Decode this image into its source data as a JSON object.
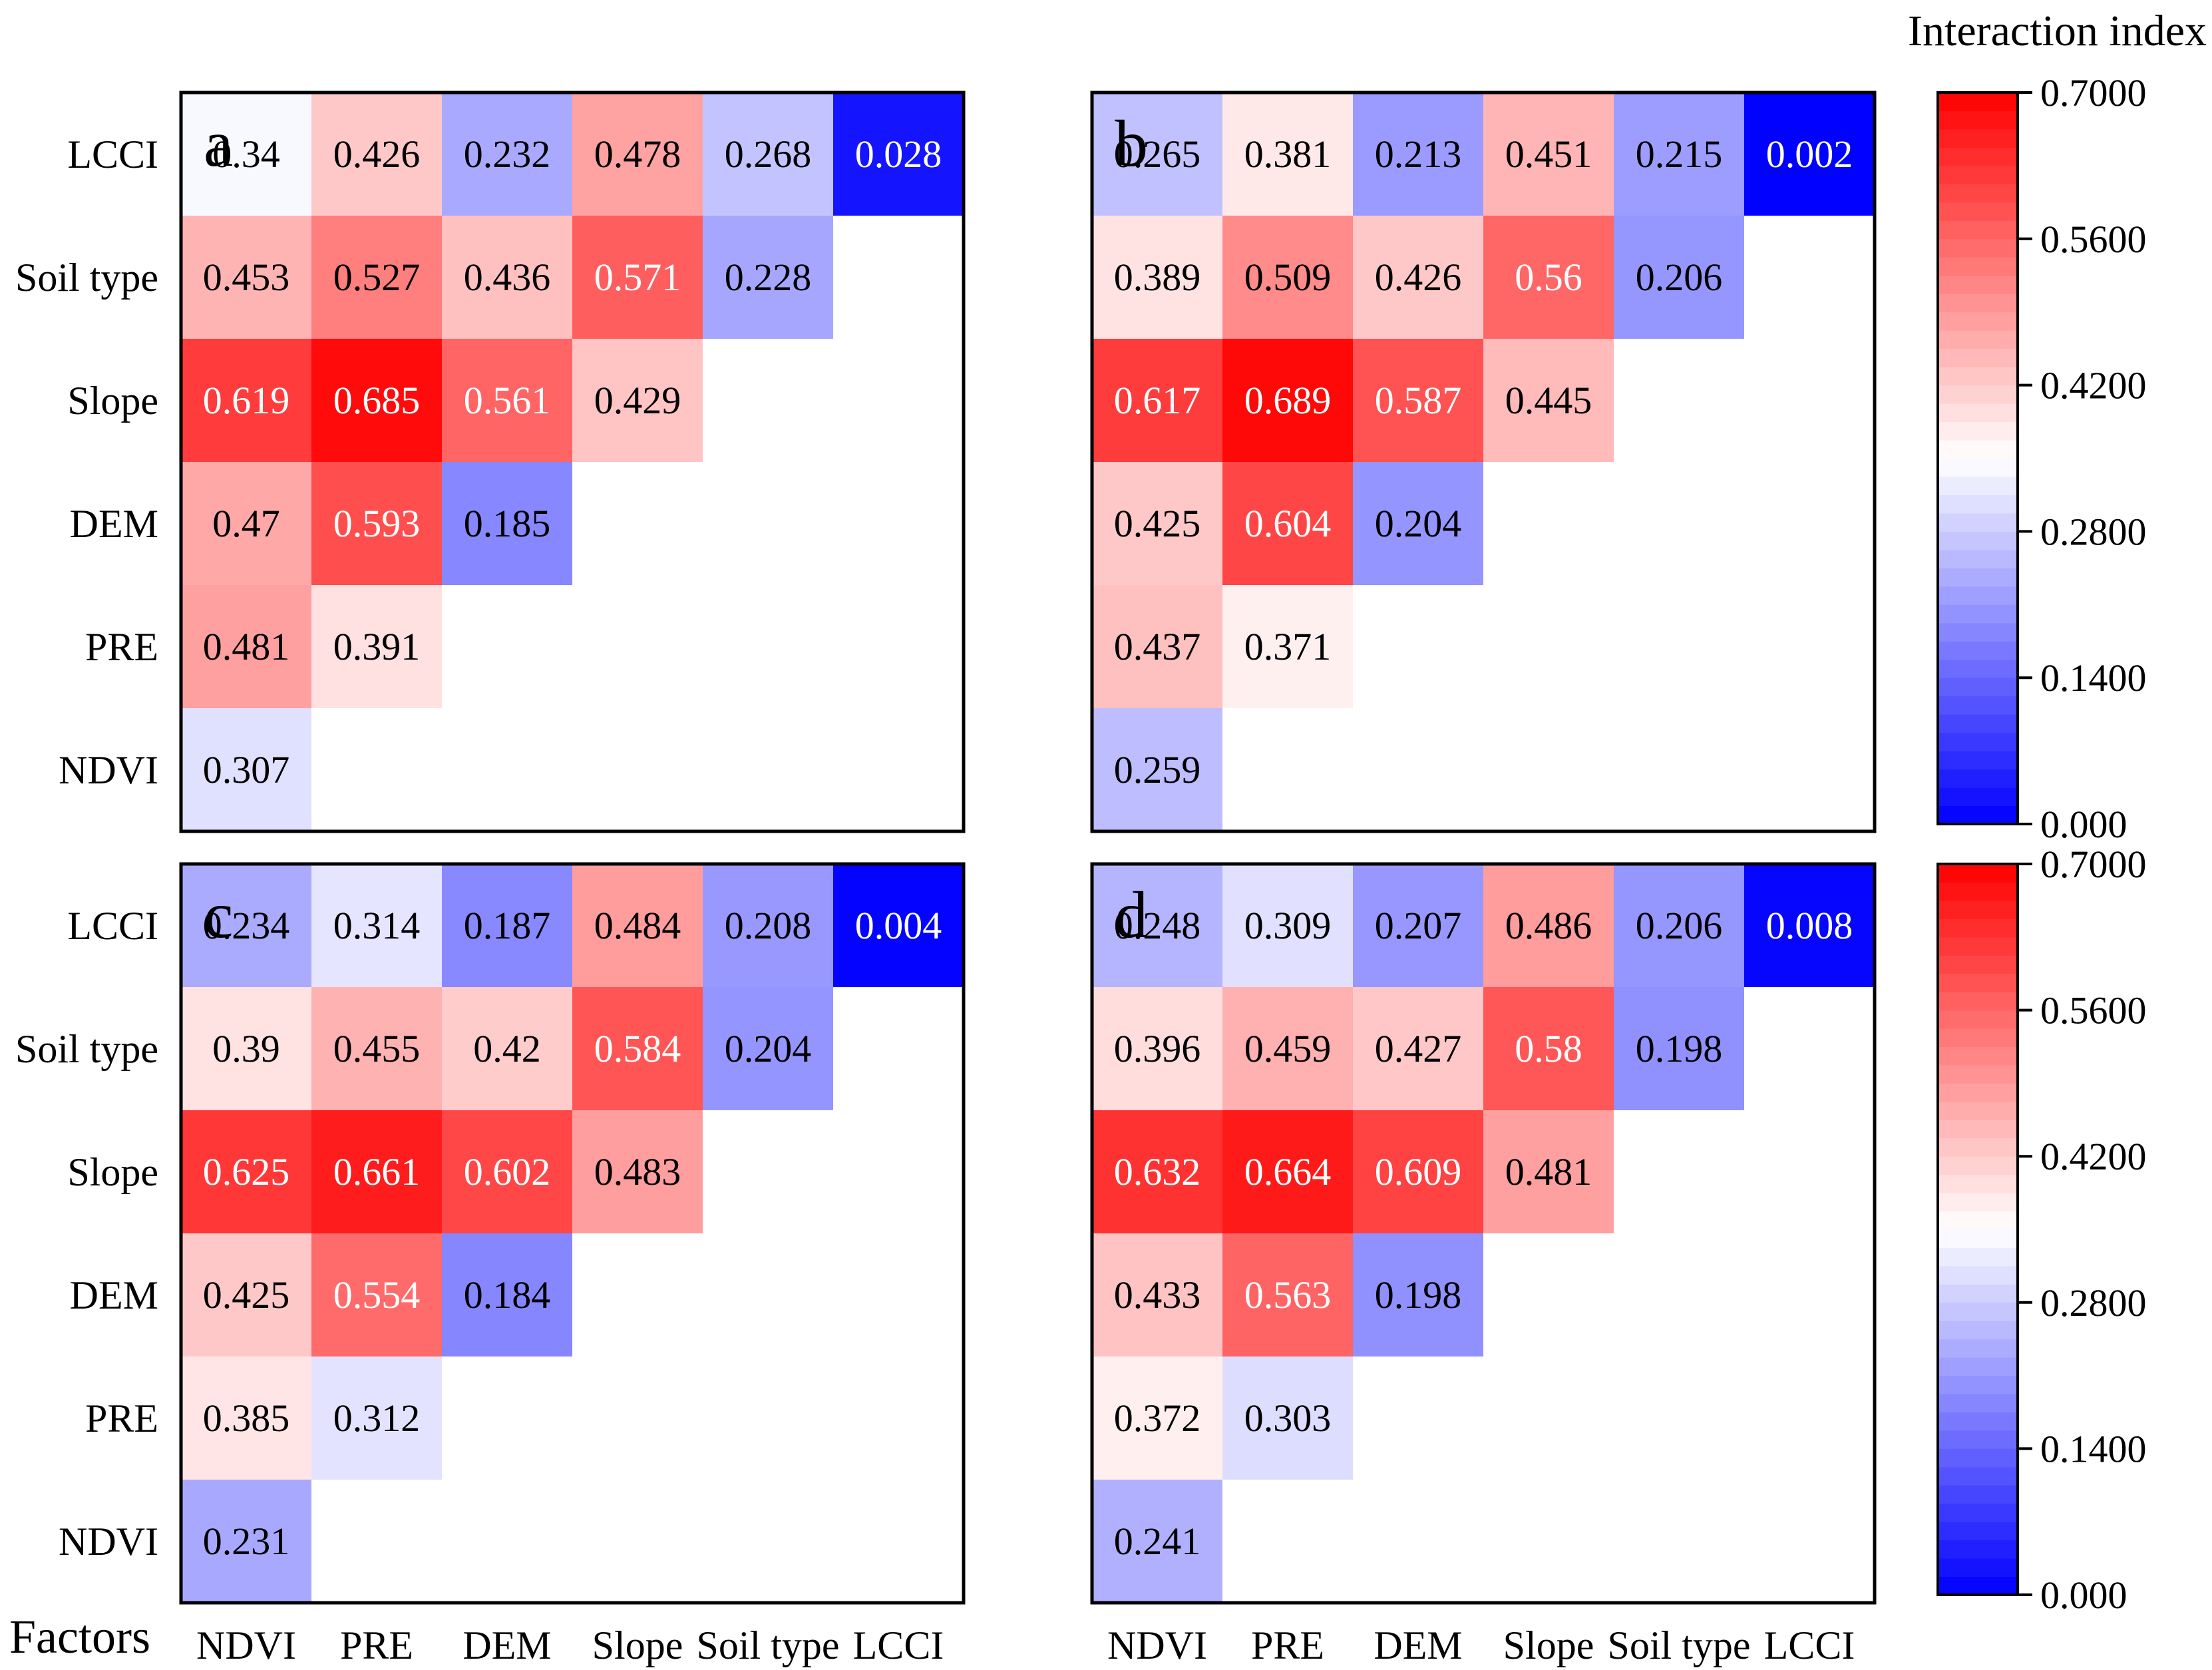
{
  "figure": {
    "factors_label": "Factors",
    "colorbar_title": "Interaction index"
  },
  "chart_data": {
    "type": "heatmap",
    "factors": [
      "NDVI",
      "PRE",
      "DEM",
      "Slope",
      "Soil type",
      "LCCI"
    ],
    "colormap": {
      "low": "#0000ff",
      "mid": "#ffffff",
      "high": "#ff0000",
      "vmin": 0.0,
      "vmid": 0.35,
      "vmax": 0.7
    },
    "colorbar_ticks": [
      "0.000",
      "0.1400",
      "0.2800",
      "0.4200",
      "0.5600",
      "0.7000"
    ],
    "colorbar_tick_values": [
      0.0,
      0.14,
      0.28,
      0.42,
      0.56,
      0.7
    ],
    "panels": [
      {
        "label": "a",
        "cells": [
          [
            {
              "text": "0.307",
              "value": 0.307
            }
          ],
          [
            {
              "text": "0.481",
              "value": 0.481
            },
            {
              "text": "0.391",
              "value": 0.391
            }
          ],
          [
            {
              "text": "0.47",
              "value": 0.47
            },
            {
              "text": "0.593",
              "value": 0.593
            },
            {
              "text": "0.185",
              "value": 0.185
            }
          ],
          [
            {
              "text": "0.619",
              "value": 0.619
            },
            {
              "text": "0.685",
              "value": 0.685
            },
            {
              "text": "0.561",
              "value": 0.561
            },
            {
              "text": "0.429",
              "value": 0.429
            }
          ],
          [
            {
              "text": "0.453",
              "value": 0.453
            },
            {
              "text": "0.527",
              "value": 0.527
            },
            {
              "text": "0.436",
              "value": 0.436
            },
            {
              "text": "0.571",
              "value": 0.571
            },
            {
              "text": "0.228",
              "value": 0.228
            }
          ],
          [
            {
              "text": "0.34",
              "value": 0.34
            },
            {
              "text": "0.426",
              "value": 0.426
            },
            {
              "text": "0.232",
              "value": 0.232
            },
            {
              "text": "0.478",
              "value": 0.478
            },
            {
              "text": "0.268",
              "value": 0.268
            },
            {
              "text": "0.028",
              "value": 0.028
            }
          ]
        ]
      },
      {
        "label": "b",
        "cells": [
          [
            {
              "text": "0.259",
              "value": 0.259
            }
          ],
          [
            {
              "text": "0.437",
              "value": 0.437
            },
            {
              "text": "0.371",
              "value": 0.371
            }
          ],
          [
            {
              "text": "0.425",
              "value": 0.425
            },
            {
              "text": "0.604",
              "value": 0.604
            },
            {
              "text": "0.204",
              "value": 0.204
            }
          ],
          [
            {
              "text": "0.617",
              "value": 0.617
            },
            {
              "text": "0.689",
              "value": 0.689
            },
            {
              "text": "0.587",
              "value": 0.587
            },
            {
              "text": "0.445",
              "value": 0.445
            }
          ],
          [
            {
              "text": "0.389",
              "value": 0.389
            },
            {
              "text": "0.509",
              "value": 0.509
            },
            {
              "text": "0.426",
              "value": 0.426
            },
            {
              "text": "0.56",
              "value": 0.56
            },
            {
              "text": "0.206",
              "value": 0.206
            }
          ],
          [
            {
              "text": "0.265",
              "value": 0.265
            },
            {
              "text": "0.381",
              "value": 0.381
            },
            {
              "text": "0.213",
              "value": 0.213
            },
            {
              "text": "0.451",
              "value": 0.451
            },
            {
              "text": "0.215",
              "value": 0.215
            },
            {
              "text": "0.002",
              "value": 0.002
            }
          ]
        ]
      },
      {
        "label": "c",
        "cells": [
          [
            {
              "text": "0.231",
              "value": 0.231
            }
          ],
          [
            {
              "text": "0.385",
              "value": 0.385
            },
            {
              "text": "0.312",
              "value": 0.312
            }
          ],
          [
            {
              "text": "0.425",
              "value": 0.425
            },
            {
              "text": "0.554",
              "value": 0.554
            },
            {
              "text": "0.184",
              "value": 0.184
            }
          ],
          [
            {
              "text": "0.625",
              "value": 0.625
            },
            {
              "text": "0.661",
              "value": 0.661
            },
            {
              "text": "0.602",
              "value": 0.602
            },
            {
              "text": "0.483",
              "value": 0.483
            }
          ],
          [
            {
              "text": "0.39",
              "value": 0.39
            },
            {
              "text": "0.455",
              "value": 0.455
            },
            {
              "text": "0.42",
              "value": 0.42
            },
            {
              "text": "0.584",
              "value": 0.584
            },
            {
              "text": "0.204",
              "value": 0.204
            }
          ],
          [
            {
              "text": "0.234",
              "value": 0.234
            },
            {
              "text": "0.314",
              "value": 0.314
            },
            {
              "text": "0.187",
              "value": 0.187
            },
            {
              "text": "0.484",
              "value": 0.484
            },
            {
              "text": "0.208",
              "value": 0.208
            },
            {
              "text": "0.004",
              "value": 0.004
            }
          ]
        ]
      },
      {
        "label": "d",
        "cells": [
          [
            {
              "text": "0.241",
              "value": 0.241
            }
          ],
          [
            {
              "text": "0.372",
              "value": 0.372
            },
            {
              "text": "0.303",
              "value": 0.303
            }
          ],
          [
            {
              "text": "0.433",
              "value": 0.433
            },
            {
              "text": "0.563",
              "value": 0.563
            },
            {
              "text": "0.198",
              "value": 0.198
            }
          ],
          [
            {
              "text": "0.632",
              "value": 0.632
            },
            {
              "text": "0.664",
              "value": 0.664
            },
            {
              "text": "0.609",
              "value": 0.609
            },
            {
              "text": "0.481",
              "value": 0.481
            }
          ],
          [
            {
              "text": "0.396",
              "value": 0.396
            },
            {
              "text": "0.459",
              "value": 0.459
            },
            {
              "text": "0.427",
              "value": 0.427
            },
            {
              "text": "0.58",
              "value": 0.58
            },
            {
              "text": "0.198",
              "value": 0.198
            }
          ],
          [
            {
              "text": "0.248",
              "value": 0.248
            },
            {
              "text": "0.309",
              "value": 0.309
            },
            {
              "text": "0.207",
              "value": 0.207
            },
            {
              "text": "0.486",
              "value": 0.486
            },
            {
              "text": "0.206",
              "value": 0.206
            },
            {
              "text": "0.008",
              "value": 0.008
            }
          ]
        ]
      }
    ]
  }
}
